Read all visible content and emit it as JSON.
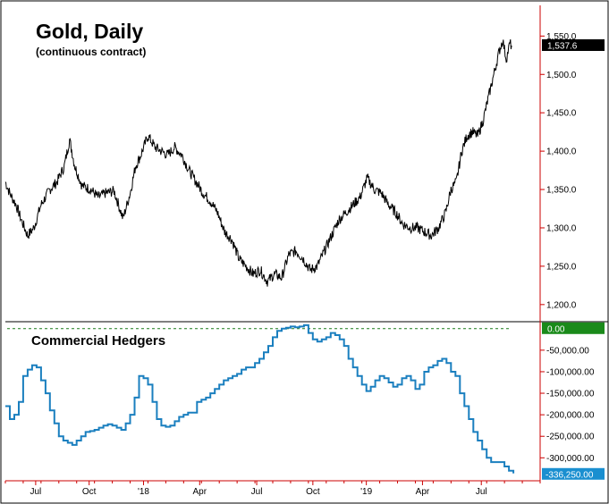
{
  "chart_data": [
    {
      "type": "line",
      "title": "Gold, Daily",
      "subtitle": "(continuous contract)",
      "y_ticks": [
        "1,550.0",
        "1,500.0",
        "1,450.0",
        "1,400.0",
        "1,350.0",
        "1,300.0",
        "1,250.0",
        "1,200.0"
      ],
      "y_tick_values": [
        1550,
        1500,
        1450,
        1400,
        1350,
        1300,
        1250,
        1200
      ],
      "ylim": [
        1180,
        1590
      ],
      "last_value": 1537.6,
      "last_label": "1,537.6",
      "series": [
        {
          "x": [
            0,
            5,
            12,
            18,
            25,
            32,
            40,
            50,
            58,
            66,
            72,
            78,
            86,
            96,
            104,
            112,
            122,
            132,
            140,
            146,
            152,
            160,
            168,
            175,
            182,
            190,
            198,
            206,
            214,
            222,
            230,
            238,
            246,
            254,
            262,
            270,
            278,
            286,
            294,
            302,
            310,
            318,
            326,
            334,
            342,
            350,
            358,
            366,
            374,
            382,
            390,
            398,
            406,
            414,
            422,
            430,
            438,
            446,
            454,
            462,
            470,
            478,
            486,
            494,
            500,
            506,
            512,
            518,
            524,
            530,
            536,
            542,
            548,
            554,
            558,
            562,
            566,
            568
          ],
          "values": [
            1360,
            1345,
            1330,
            1310,
            1290,
            1300,
            1330,
            1350,
            1360,
            1380,
            1415,
            1380,
            1355,
            1350,
            1340,
            1345,
            1348,
            1312,
            1345,
            1380,
            1395,
            1420,
            1405,
            1400,
            1395,
            1405,
            1395,
            1375,
            1360,
            1345,
            1335,
            1320,
            1295,
            1285,
            1260,
            1250,
            1240,
            1245,
            1230,
            1240,
            1235,
            1265,
            1270,
            1260,
            1245,
            1250,
            1270,
            1290,
            1310,
            1320,
            1330,
            1340,
            1365,
            1350,
            1345,
            1330,
            1320,
            1305,
            1300,
            1300,
            1295,
            1290,
            1300,
            1320,
            1350,
            1360,
            1400,
            1420,
            1425,
            1420,
            1440,
            1470,
            1500,
            1530,
            1545,
            1520,
            1540,
            1537.6
          ]
        }
      ]
    },
    {
      "type": "line",
      "title": "Commercial Hedgers",
      "y_ticks": [
        "0.00",
        "-50,000.00",
        "-100,000.00",
        "-150,000.00",
        "-200,000.00",
        "-250,000.00",
        "-300,000.00"
      ],
      "y_tick_values": [
        0,
        -50000,
        -100000,
        -150000,
        -200000,
        -250000,
        -300000
      ],
      "ylim": [
        -345000,
        12000
      ],
      "zero_label": "0.00",
      "last_value": -336250,
      "last_label": "-336,250.00",
      "x_ticks": [
        "Jul",
        "Oct",
        "'18",
        "Apr",
        "Jul",
        "Oct",
        "'19",
        "Apr",
        "Jul"
      ],
      "x_tick_values": [
        34,
        94,
        155,
        218,
        282,
        345,
        405,
        468,
        534
      ],
      "series": [
        {
          "x": [
            0,
            5,
            10,
            15,
            20,
            25,
            30,
            35,
            40,
            45,
            50,
            55,
            60,
            65,
            70,
            75,
            80,
            85,
            90,
            95,
            100,
            105,
            110,
            115,
            120,
            125,
            130,
            135,
            140,
            145,
            150,
            155,
            160,
            165,
            170,
            175,
            180,
            185,
            190,
            195,
            200,
            205,
            210,
            215,
            220,
            225,
            230,
            235,
            240,
            245,
            250,
            255,
            260,
            265,
            270,
            275,
            280,
            285,
            290,
            295,
            300,
            305,
            310,
            315,
            320,
            325,
            330,
            335,
            340,
            345,
            350,
            355,
            360,
            365,
            370,
            375,
            380,
            385,
            390,
            395,
            400,
            405,
            410,
            415,
            420,
            425,
            430,
            435,
            440,
            445,
            450,
            455,
            460,
            465,
            470,
            475,
            480,
            485,
            490,
            495,
            500,
            505,
            510,
            515,
            520,
            525,
            530,
            535,
            540,
            545,
            550,
            555,
            560,
            565,
            570
          ],
          "values": [
            -180000,
            -210000,
            -200000,
            -170000,
            -110000,
            -95000,
            -85000,
            -90000,
            -120000,
            -150000,
            -190000,
            -220000,
            -250000,
            -260000,
            -265000,
            -270000,
            -260000,
            -250000,
            -240000,
            -238000,
            -235000,
            -230000,
            -225000,
            -222000,
            -225000,
            -230000,
            -235000,
            -220000,
            -200000,
            -160000,
            -110000,
            -115000,
            -130000,
            -170000,
            -210000,
            -225000,
            -228000,
            -225000,
            -215000,
            -205000,
            -200000,
            -195000,
            -195000,
            -170000,
            -165000,
            -160000,
            -150000,
            -140000,
            -130000,
            -120000,
            -115000,
            -110000,
            -105000,
            -95000,
            -90000,
            -90000,
            -80000,
            -70000,
            -55000,
            -40000,
            -20000,
            -5000,
            0,
            2000,
            5000,
            3000,
            5000,
            8000,
            -10000,
            -25000,
            -30000,
            -25000,
            -20000,
            -10000,
            -15000,
            -25000,
            -40000,
            -70000,
            -90000,
            -110000,
            -130000,
            -145000,
            -135000,
            -120000,
            -110000,
            -115000,
            -125000,
            -135000,
            -130000,
            -115000,
            -110000,
            -120000,
            -140000,
            -130000,
            -100000,
            -90000,
            -85000,
            -75000,
            -70000,
            -80000,
            -100000,
            -110000,
            -150000,
            -180000,
            -210000,
            -240000,
            -260000,
            -280000,
            -300000,
            -310000,
            -310000,
            -310000,
            -320000,
            -330000,
            -336250
          ]
        }
      ]
    }
  ],
  "colors": {
    "price": "#000000",
    "hedgers": "#1a7fbf",
    "zero_line": "#1a7a1a",
    "zero_box": "#1a8a1a",
    "axis_red": "#cc0000",
    "last_box": "#000000",
    "hedger_box": "#1a8fd0"
  }
}
